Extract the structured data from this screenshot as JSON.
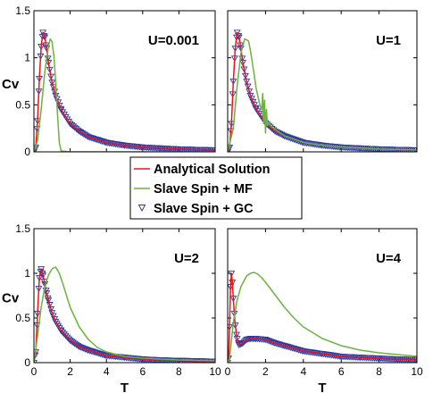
{
  "legend": {
    "entries": [
      {
        "label": "Analytical Solution",
        "color": "#e8141c",
        "marker": "line"
      },
      {
        "label": "Slave Spin + MF",
        "color": "#6cb33f",
        "marker": "line"
      },
      {
        "label": "Slave Spin + GC",
        "color": "#2a3aa6",
        "marker": "triangle-down"
      }
    ]
  },
  "chart_data": [
    {
      "type": "line",
      "title": "U=0.001",
      "xlabel": "",
      "ylabel": "Cv",
      "xlim": [
        0,
        10
      ],
      "ylim": [
        0,
        1.5
      ],
      "xticks": [],
      "yticks": [
        "0",
        "0.5",
        "1",
        "1.5"
      ],
      "series": [
        {
          "name": "Analytical Solution",
          "color": "#e8141c",
          "x": [
            0,
            0.1,
            0.2,
            0.3,
            0.4,
            0.5,
            0.6,
            0.7,
            0.8,
            1.0,
            1.2,
            1.5,
            2,
            2.5,
            3,
            4,
            5,
            6,
            7,
            8,
            9,
            10
          ],
          "y": [
            0,
            0.05,
            0.33,
            0.78,
            1.12,
            1.27,
            1.22,
            1.1,
            0.95,
            0.74,
            0.6,
            0.45,
            0.3,
            0.22,
            0.16,
            0.1,
            0.07,
            0.05,
            0.04,
            0.03,
            0.025,
            0.02
          ]
        },
        {
          "name": "Slave Spin + MF",
          "color": "#6cb33f",
          "x": [
            0,
            0.2,
            0.4,
            0.6,
            0.8,
            0.9,
            1.0,
            1.1,
            1.2,
            1.3,
            1.4,
            1.5,
            2,
            5,
            10
          ],
          "y": [
            0,
            0.12,
            0.45,
            0.85,
            1.12,
            1.2,
            1.17,
            1.02,
            0.75,
            0.4,
            0.1,
            0.01,
            0,
            0,
            0
          ]
        },
        {
          "name": "Slave Spin + GC",
          "color": "#2a3aa6",
          "marker": "triangle-down",
          "x": [
            0,
            0.1,
            0.2,
            0.3,
            0.4,
            0.5,
            0.6,
            0.7,
            0.8,
            1.0,
            1.2,
            1.5,
            2,
            2.5,
            3,
            4,
            5,
            6,
            7,
            8,
            9,
            10
          ],
          "y": [
            0,
            0.05,
            0.33,
            0.78,
            1.12,
            1.27,
            1.22,
            1.1,
            0.95,
            0.74,
            0.6,
            0.45,
            0.3,
            0.22,
            0.16,
            0.1,
            0.07,
            0.05,
            0.04,
            0.03,
            0.025,
            0.02
          ]
        }
      ]
    },
    {
      "type": "line",
      "title": "U=1",
      "xlabel": "",
      "ylabel": "",
      "xlim": [
        0,
        10
      ],
      "ylim": [
        0,
        1.5
      ],
      "xticks": [],
      "yticks": [],
      "series": [
        {
          "name": "Analytical Solution",
          "color": "#e8141c",
          "x": [
            0,
            0.1,
            0.2,
            0.3,
            0.4,
            0.5,
            0.6,
            0.7,
            0.8,
            1.0,
            1.2,
            1.5,
            2,
            2.5,
            3,
            4,
            5,
            6,
            7,
            8,
            9,
            10
          ],
          "y": [
            0,
            0.05,
            0.3,
            0.75,
            1.1,
            1.27,
            1.22,
            1.1,
            0.95,
            0.75,
            0.6,
            0.46,
            0.31,
            0.22,
            0.17,
            0.1,
            0.07,
            0.05,
            0.04,
            0.03,
            0.025,
            0.02
          ]
        },
        {
          "name": "Slave Spin + MF",
          "color": "#6cb33f",
          "x": [
            0,
            0.3,
            0.5,
            0.7,
            0.9,
            1.1,
            1.2,
            1.3,
            1.4,
            1.5,
            1.7,
            1.8,
            1.85,
            1.9,
            1.95,
            2.0,
            2.05,
            2.1,
            2.2,
            2.3,
            2.5,
            3,
            4,
            5,
            6,
            7,
            8,
            9,
            10
          ],
          "y": [
            0,
            0.25,
            0.7,
            1.05,
            1.2,
            1.18,
            1.08,
            0.95,
            0.82,
            0.68,
            0.5,
            0.45,
            0.62,
            0.3,
            0.55,
            0.2,
            0.45,
            0.28,
            0.3,
            0.27,
            0.24,
            0.17,
            0.1,
            0.07,
            0.05,
            0.04,
            0.03,
            0.025,
            0.02
          ]
        },
        {
          "name": "Slave Spin + GC",
          "color": "#2a3aa6",
          "marker": "triangle-down",
          "x": [
            0,
            0.1,
            0.2,
            0.3,
            0.4,
            0.5,
            0.6,
            0.7,
            0.8,
            1.0,
            1.2,
            1.5,
            2,
            2.5,
            3,
            4,
            5,
            6,
            7,
            8,
            9,
            10
          ],
          "y": [
            0,
            0.05,
            0.3,
            0.75,
            1.1,
            1.27,
            1.22,
            1.1,
            0.95,
            0.75,
            0.6,
            0.46,
            0.31,
            0.22,
            0.17,
            0.1,
            0.07,
            0.05,
            0.04,
            0.03,
            0.025,
            0.02
          ]
        }
      ]
    },
    {
      "type": "line",
      "title": "U=2",
      "xlabel": "T",
      "ylabel": "Cv",
      "xlim": [
        0,
        10
      ],
      "ylim": [
        0,
        1.5
      ],
      "xticks": [
        "0",
        "2",
        "4",
        "6",
        "8",
        "10"
      ],
      "yticks": [
        "0",
        "0.5",
        "1",
        "1.5"
      ],
      "series": [
        {
          "name": "Analytical Solution",
          "color": "#e8141c",
          "x": [
            0,
            0.1,
            0.2,
            0.3,
            0.4,
            0.5,
            0.6,
            0.7,
            0.8,
            1.0,
            1.2,
            1.5,
            2,
            2.5,
            3,
            4,
            5,
            6,
            7,
            8,
            9,
            10
          ],
          "y": [
            0,
            0.12,
            0.55,
            0.95,
            1.05,
            0.98,
            0.88,
            0.78,
            0.7,
            0.56,
            0.46,
            0.36,
            0.25,
            0.18,
            0.14,
            0.08,
            0.06,
            0.04,
            0.03,
            0.025,
            0.02,
            0.015
          ]
        },
        {
          "name": "Slave Spin + MF",
          "color": "#6cb33f",
          "x": [
            0,
            0.2,
            0.4,
            0.6,
            0.8,
            1.0,
            1.2,
            1.4,
            1.6,
            1.8,
            2.0,
            2.5,
            3,
            3.5,
            4,
            5,
            6,
            7,
            8,
            9,
            10
          ],
          "y": [
            0,
            0.3,
            0.62,
            0.85,
            0.98,
            1.05,
            1.07,
            1.0,
            0.88,
            0.75,
            0.62,
            0.4,
            0.26,
            0.17,
            0.12,
            0.07,
            0.05,
            0.04,
            0.03,
            0.025,
            0.02
          ]
        },
        {
          "name": "Slave Spin + GC",
          "color": "#2a3aa6",
          "marker": "triangle-down",
          "x": [
            0,
            0.1,
            0.2,
            0.3,
            0.4,
            0.5,
            0.6,
            0.7,
            0.8,
            1.0,
            1.2,
            1.5,
            2,
            2.5,
            3,
            4,
            5,
            6,
            7,
            8,
            9,
            10
          ],
          "y": [
            0,
            0.12,
            0.55,
            0.95,
            1.05,
            0.98,
            0.88,
            0.78,
            0.7,
            0.56,
            0.46,
            0.36,
            0.25,
            0.18,
            0.14,
            0.08,
            0.06,
            0.04,
            0.03,
            0.025,
            0.02,
            0.015
          ]
        }
      ]
    },
    {
      "type": "line",
      "title": "U=4",
      "xlabel": "T",
      "ylabel": "",
      "xlim": [
        0,
        10
      ],
      "ylim": [
        0,
        1.5
      ],
      "xticks": [
        "0",
        "2",
        "4",
        "6",
        "8",
        "10"
      ],
      "yticks": [],
      "series": [
        {
          "name": "Analytical Solution",
          "color": "#e8141c",
          "x": [
            0,
            0.05,
            0.1,
            0.15,
            0.2,
            0.25,
            0.3,
            0.35,
            0.4,
            0.5,
            0.6,
            0.8,
            1.0,
            1.2,
            1.5,
            2,
            2.5,
            3,
            4,
            5,
            6,
            7,
            8,
            9,
            10
          ],
          "y": [
            0,
            0.05,
            0.4,
            0.85,
            1.0,
            0.9,
            0.72,
            0.55,
            0.42,
            0.27,
            0.2,
            0.22,
            0.26,
            0.27,
            0.27,
            0.26,
            0.22,
            0.19,
            0.13,
            0.1,
            0.07,
            0.06,
            0.05,
            0.04,
            0.035
          ]
        },
        {
          "name": "Slave Spin + MF",
          "color": "#6cb33f",
          "x": [
            0,
            0.1,
            0.2,
            0.3,
            0.5,
            0.7,
            1.0,
            1.2,
            1.4,
            1.6,
            1.8,
            2.0,
            2.5,
            3,
            3.5,
            4,
            5,
            6,
            7,
            8,
            9,
            10
          ],
          "y": [
            0,
            0.05,
            0.25,
            0.45,
            0.7,
            0.85,
            0.97,
            1.0,
            1.01,
            0.99,
            0.95,
            0.9,
            0.76,
            0.62,
            0.5,
            0.4,
            0.27,
            0.19,
            0.14,
            0.11,
            0.09,
            0.07
          ]
        },
        {
          "name": "Slave Spin + GC",
          "color": "#2a3aa6",
          "marker": "triangle-down",
          "x": [
            0,
            0.05,
            0.1,
            0.15,
            0.2,
            0.25,
            0.3,
            0.35,
            0.4,
            0.5,
            0.6,
            0.8,
            1.0,
            1.2,
            1.5,
            2,
            2.5,
            3,
            4,
            5,
            6,
            7,
            8,
            9,
            10
          ],
          "y": [
            0,
            0.05,
            0.4,
            0.85,
            1.0,
            0.9,
            0.72,
            0.55,
            0.42,
            0.27,
            0.2,
            0.22,
            0.26,
            0.27,
            0.27,
            0.26,
            0.22,
            0.19,
            0.13,
            0.1,
            0.07,
            0.06,
            0.05,
            0.04,
            0.035
          ]
        }
      ]
    }
  ]
}
